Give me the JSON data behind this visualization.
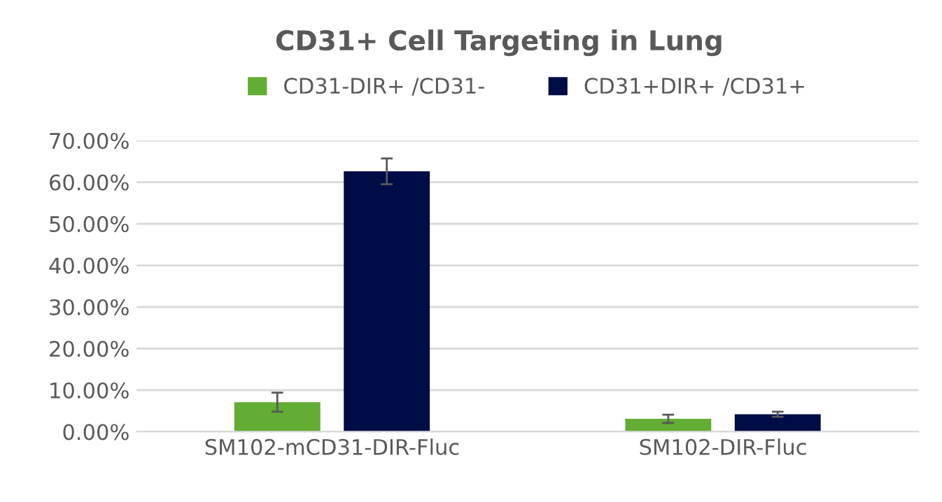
{
  "chart_data": {
    "type": "bar",
    "title": "CD31+ Cell Targeting in Lung",
    "categories": [
      "SM102-mCD31-DIR-Fluc",
      "SM102-DIR-Fluc"
    ],
    "series": [
      {
        "name": "CD31-DIR+ /CD31-",
        "color": "#62ad34",
        "values": [
          7.1,
          3.1
        ],
        "errors": [
          2.3,
          1.0
        ]
      },
      {
        "name": "CD31+DIR+ /CD31+",
        "color": "#000c45",
        "values": [
          62.6,
          4.2
        ],
        "errors": [
          3.1,
          0.6
        ]
      }
    ],
    "ylim": [
      0,
      70
    ],
    "yticks": [
      {
        "value": 0,
        "label": "0.00%"
      },
      {
        "value": 10,
        "label": "10.00%"
      },
      {
        "value": 20,
        "label": "20.00%"
      },
      {
        "value": 30,
        "label": "30.00%"
      },
      {
        "value": 40,
        "label": "40.00%"
      },
      {
        "value": 50,
        "label": "50.00%"
      },
      {
        "value": 60,
        "label": "60.00%"
      },
      {
        "value": 70,
        "label": "70.00%"
      }
    ],
    "grid": "y",
    "legend": "top"
  }
}
